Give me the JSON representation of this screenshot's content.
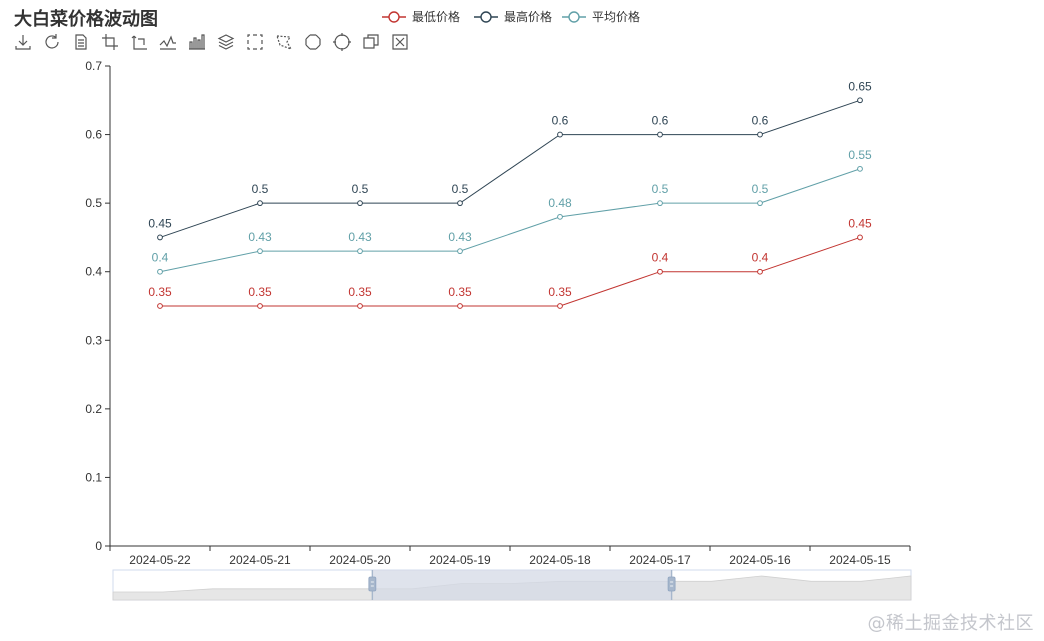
{
  "title": "大白菜价格波动图",
  "watermark": "@稀土掘金技术社区",
  "toolbox": {
    "items": [
      {
        "name": "download-icon"
      },
      {
        "name": "refresh-icon"
      },
      {
        "name": "data-view-icon"
      },
      {
        "name": "crop-icon"
      },
      {
        "name": "crop-reset-icon"
      },
      {
        "name": "line-chart-icon"
      },
      {
        "name": "bar-chart-icon"
      },
      {
        "name": "stack-icon"
      },
      {
        "name": "rect-select-icon"
      },
      {
        "name": "polygon-select-icon"
      },
      {
        "name": "keep-select-icon"
      },
      {
        "name": "clear-select-icon"
      },
      {
        "name": "zoom-icon"
      },
      {
        "name": "zoom-reset-icon"
      }
    ]
  },
  "chart_data": {
    "type": "line",
    "title": "大白菜价格波动图",
    "categories": [
      "2024-05-22",
      "2024-05-21",
      "2024-05-20",
      "2024-05-19",
      "2024-05-18",
      "2024-05-17",
      "2024-05-16",
      "2024-05-15"
    ],
    "series": [
      {
        "name": "最低价格",
        "color": "#c23531",
        "values": [
          0.35,
          0.35,
          0.35,
          0.35,
          0.35,
          0.4,
          0.4,
          0.45
        ],
        "labels": [
          "0.35",
          "0.35",
          "0.35",
          "0.35",
          "0.35",
          "0.4",
          "0.4",
          "0.45"
        ]
      },
      {
        "name": "最高价格",
        "color": "#2f4554",
        "values": [
          0.45,
          0.5,
          0.5,
          0.5,
          0.6,
          0.6,
          0.6,
          0.65
        ],
        "labels": [
          "0.45",
          "0.5",
          "0.5",
          "0.5",
          "0.6",
          "0.6",
          "0.6",
          "0.65"
        ]
      },
      {
        "name": "平均价格",
        "color": "#61a0a8",
        "values": [
          0.4,
          0.43,
          0.43,
          0.43,
          0.48,
          0.5,
          0.5,
          0.55
        ],
        "labels": [
          "0.4",
          "0.43",
          "0.43",
          "0.43",
          "0.48",
          "0.5",
          "0.5",
          "0.55"
        ]
      }
    ],
    "ylim": [
      0,
      0.7
    ],
    "yticks": [
      0,
      0.1,
      0.2,
      0.3,
      0.4,
      0.5,
      0.6,
      0.7
    ],
    "ytick_labels": [
      "0",
      "0.1",
      "0.2",
      "0.3",
      "0.4",
      "0.5",
      "0.6",
      "0.7"
    ],
    "xlabel": "",
    "ylabel": "",
    "legend_position": "top-center",
    "grid": false,
    "datazoom": {
      "range_start_fraction": 0.325,
      "range_end_fraction": 0.7,
      "shadow_values": [
        0.4,
        0.4,
        0.43,
        0.43,
        0.43,
        0.43,
        0.43,
        0.48,
        0.48,
        0.5,
        0.5,
        0.5,
        0.5,
        0.55,
        0.5,
        0.5,
        0.55
      ],
      "color": "#d4d9e6"
    }
  }
}
